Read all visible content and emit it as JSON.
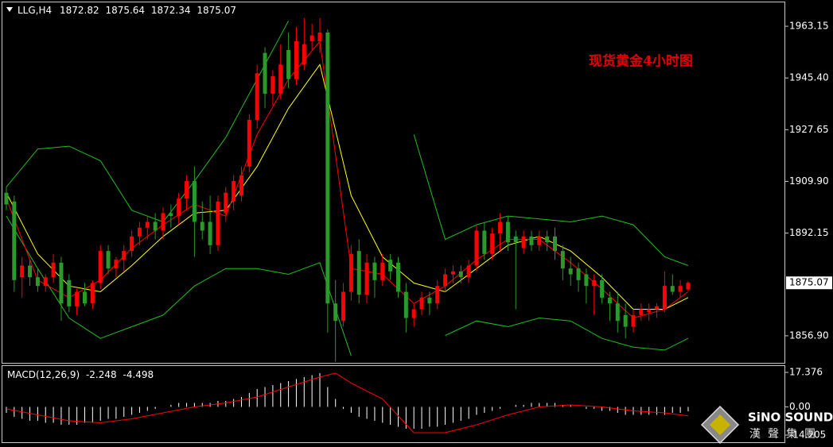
{
  "chart_data": [
    {
      "type": "candlestick",
      "symbol": "LLG,H4",
      "annotation": "现货黄金4小时图",
      "open": [
        1906,
        1903,
        1877,
        1881,
        1877,
        1874,
        1877,
        1882,
        1876,
        1867,
        1872,
        1868,
        1875,
        1886,
        1880,
        1883,
        1886,
        1891,
        1894,
        1896,
        1893,
        1899,
        1898,
        1904,
        1910,
        1896,
        1896,
        1888,
        1899,
        1903,
        1905,
        1915,
        1931,
        1954,
        1940,
        1940,
        1955,
        1945,
        1950,
        1958,
        1958,
        1961,
        1868,
        1862,
        1872,
        1886,
        1871,
        1882,
        1876,
        1883,
        1882,
        1872,
        1863,
        1866,
        1870,
        1868,
        1874,
        1878,
        1879,
        1877,
        1881,
        1893,
        1885,
        1892,
        1896,
        1891,
        1887,
        1891,
        1888,
        1891,
        1891,
        1886,
        1880,
        1880,
        1878,
        1874,
        1876,
        1870,
        1868,
        1864,
        1860,
        1864,
        1865,
        1866,
        1866,
        1874,
        1872,
        1872.82
      ],
      "high": [
        1908,
        1905,
        1884,
        1883,
        1880,
        1878,
        1885,
        1884,
        1878,
        1873,
        1875,
        1876,
        1888,
        1888,
        1884,
        1888,
        1893,
        1896,
        1898,
        1899,
        1901,
        1902,
        1906,
        1912,
        1915,
        1903,
        1905,
        1905,
        1908,
        1912,
        1915,
        1933,
        1950,
        1956,
        1948,
        1957,
        1961,
        1963,
        1966,
        1964,
        1966,
        1962,
        1876,
        1875,
        1888,
        1890,
        1885,
        1884,
        1885,
        1885,
        1884,
        1875,
        1868,
        1872,
        1872,
        1876,
        1880,
        1881,
        1881,
        1883,
        1895,
        1896,
        1894,
        1899,
        1898,
        1893,
        1893,
        1893,
        1893,
        1893,
        1894,
        1888,
        1884,
        1882,
        1880,
        1878,
        1878,
        1872,
        1872,
        1868,
        1866,
        1868,
        1868,
        1868,
        1879,
        1878,
        1876,
        1875.64
      ],
      "low": [
        1900,
        1872,
        1870,
        1874,
        1872,
        1872,
        1875,
        1862,
        1865,
        1864,
        1867,
        1866,
        1873,
        1878,
        1877,
        1879,
        1884,
        1888,
        1890,
        1890,
        1890,
        1894,
        1895,
        1900,
        1884,
        1890,
        1885,
        1886,
        1896,
        1900,
        1903,
        1913,
        1928,
        1935,
        1936,
        1938,
        1942,
        1943,
        1948,
        1955,
        1954,
        1858,
        1848,
        1860,
        1869,
        1868,
        1868,
        1870,
        1874,
        1876,
        1870,
        1858,
        1860,
        1864,
        1864,
        1866,
        1872,
        1875,
        1875,
        1875,
        1879,
        1883,
        1883,
        1886,
        1886,
        1866,
        1885,
        1886,
        1886,
        1886,
        1883,
        1876,
        1874,
        1872,
        1868,
        1864,
        1868,
        1862,
        1858,
        1856,
        1858,
        1862,
        1862,
        1863,
        1865,
        1871,
        1870,
        1872.34
      ],
      "close": [
        1902,
        1876,
        1881,
        1877,
        1874,
        1877,
        1882,
        1868,
        1867,
        1872,
        1868,
        1875,
        1886,
        1880,
        1883,
        1886,
        1891,
        1894,
        1896,
        1893,
        1899,
        1898,
        1904,
        1910,
        1896,
        1893,
        1888,
        1903,
        1906,
        1910,
        1912,
        1931,
        1947,
        1940,
        1946,
        1950,
        1945,
        1958,
        1957,
        1960,
        1961,
        1868,
        1862,
        1872,
        1885,
        1871,
        1882,
        1876,
        1882,
        1879,
        1872,
        1863,
        1866,
        1870,
        1868,
        1874,
        1878,
        1879,
        1877,
        1881,
        1893,
        1885,
        1892,
        1896,
        1889,
        1889,
        1891,
        1888,
        1891,
        1889,
        1886,
        1880,
        1878,
        1876,
        1874,
        1876,
        1870,
        1868,
        1862,
        1860,
        1864,
        1866,
        1866,
        1867,
        1874,
        1872,
        1874,
        1875.07
      ],
      "up_color": "#ff0000",
      "down_color": "#2a9a2a",
      "lines": [
        {
          "color": "#1fbf1f",
          "x": [
            0,
            4,
            8,
            12,
            16,
            20,
            24,
            28,
            32,
            36,
            40,
            44,
            48,
            52,
            56,
            60,
            64,
            68,
            72,
            76,
            80,
            84,
            87
          ],
          "values": [
            1908,
            1921,
            1922,
            1917,
            1900,
            1896,
            1910,
            1925,
            1945,
            1965,
            null,
            null,
            null,
            1926,
            1890,
            1895,
            1898,
            1897,
            1896,
            1898,
            1895,
            1884,
            1881
          ]
        },
        {
          "color": "#1fbf1f",
          "x": [
            0,
            4,
            8,
            12,
            16,
            20,
            24,
            28,
            32,
            36,
            40,
            44,
            48,
            52,
            56,
            60,
            64,
            68,
            72,
            76,
            80,
            84,
            87
          ],
          "values": [
            1898,
            1880,
            1863,
            1856,
            1860,
            1864,
            1874,
            1880,
            1880,
            1878,
            1882,
            1850,
            null,
            null,
            1857,
            1862,
            1860,
            1863,
            1862,
            1856,
            1853,
            1852,
            1856
          ]
        },
        {
          "color": "#ffff00",
          "x": [
            0,
            4,
            8,
            12,
            16,
            20,
            24,
            28,
            32,
            36,
            40,
            44,
            48,
            52,
            56,
            60,
            64,
            68,
            72,
            76,
            80,
            84,
            87
          ],
          "values": [
            1906,
            1885,
            1874,
            1872,
            1881,
            1891,
            1899,
            1900,
            1915,
            1935,
            1950,
            1905,
            1884,
            1875,
            1872,
            1880,
            1888,
            1891,
            1886,
            1877,
            1866,
            1866,
            1870
          ]
        },
        {
          "color": "#ff0000",
          "x": [
            0,
            4,
            8,
            12,
            16,
            20,
            24,
            28,
            32,
            36,
            40,
            44,
            48,
            52,
            56,
            60,
            64,
            68,
            72,
            76,
            80,
            84,
            87
          ],
          "values": [
            1904,
            1876,
            1870,
            1876,
            1887,
            1895,
            1902,
            1898,
            1926,
            1945,
            1958,
            1880,
            1878,
            1868,
            1874,
            1883,
            1890,
            1890,
            1882,
            1873,
            1863,
            1866,
            1872
          ]
        }
      ],
      "ylim": [
        1847.61,
        1971.62
      ],
      "yticks": [
        1963.15,
        {
          "value": 1945.4,
          "label": "1945.40"
        },
        1927.65,
        {
          "value": 1909.9,
          "label": "1909.90"
        },
        1892.15,
        {
          "value": 1856.9,
          "label": "1856.90"
        }
      ]
    },
    {
      "type": "macd",
      "title": "MACD(12,26,9)",
      "series": [
        {
          "color": "#ffffff",
          "values": [
            -3,
            -5,
            -6,
            -7,
            -7,
            -8,
            -8,
            -9,
            -9,
            -9,
            -8,
            -8,
            -7,
            -6,
            -6,
            -5,
            -4,
            -3,
            -2,
            -1,
            0,
            1,
            2,
            2,
            2,
            2,
            2,
            3,
            3,
            4,
            5,
            7,
            9,
            10,
            11,
            12,
            13,
            14,
            15,
            16,
            17,
            10,
            4,
            -1,
            -3,
            -5,
            -6,
            -7,
            -8,
            -9,
            -10,
            -11,
            -11,
            -11,
            -10,
            -10,
            -9,
            -8,
            -7,
            -6,
            -4,
            -3,
            -2,
            -1,
            0,
            1,
            1,
            2,
            2,
            2,
            2,
            1,
            1,
            0,
            -1,
            -1,
            -2,
            -2,
            -3,
            -4,
            -4,
            -4,
            -4,
            -4,
            -4,
            -3,
            -3,
            -2.248
          ]
        },
        {
          "color": "#ff0000",
          "x": [
            0,
            4,
            8,
            12,
            16,
            20,
            24,
            28,
            32,
            36,
            40,
            42,
            44,
            48,
            52,
            56,
            60,
            64,
            68,
            72,
            76,
            80,
            84,
            87
          ],
          "values": [
            -1,
            -4,
            -7,
            -8,
            -6,
            -3,
            0,
            2,
            5,
            10,
            15,
            17,
            12,
            4,
            -13,
            -13,
            -9,
            -4,
            0,
            1,
            0,
            -2,
            -3,
            -4.498
          ]
        }
      ],
      "ylim": [
        -17.8,
        20.97
      ],
      "yticks": [
        17.376,
        {
          "value": 0,
          "label": "0.00"
        },
        -14.205
      ],
      "watermark": {
        "name": "SiNO SOUND",
        "subtitle": "漢聲集團"
      }
    }
  ]
}
